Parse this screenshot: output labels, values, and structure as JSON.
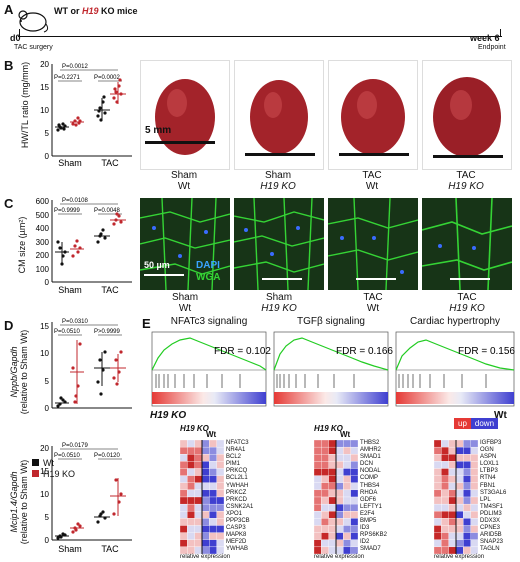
{
  "panel_a": {
    "letter": "A",
    "title_prefix": "WT or ",
    "title_gene": "H19",
    "title_suffix": " KO mice",
    "start_label": "d0",
    "surgery_label": "TAC surgery",
    "end_label": "week 6",
    "endpoint_label": "Endpoint"
  },
  "panel_b": {
    "letter": "B",
    "ylabel": "HW/TL ratio (mg/mm)",
    "yticks": [
      "0",
      "5",
      "10",
      "15",
      "20"
    ],
    "groups": [
      "Sham",
      "TAC"
    ],
    "p_top": "P=0.0012",
    "p_left": "P=0.2271",
    "p_right": "P=0.0002",
    "scale": "5 mm",
    "captions": [
      {
        "line1": "Sham",
        "line2": "Wt"
      },
      {
        "line1": "Sham",
        "line2": "H19 KO"
      },
      {
        "line1": "TAC",
        "line2": "Wt"
      },
      {
        "line1": "TAC",
        "line2": "H19 KO"
      }
    ]
  },
  "panel_c": {
    "letter": "C",
    "ylabel": "CM size (µm²)",
    "yticks": [
      "0",
      "100",
      "200",
      "300",
      "400",
      "500",
      "600"
    ],
    "groups": [
      "Sham",
      "TAC"
    ],
    "p_top": "P=0.0108",
    "p_left": "P=0.9999",
    "p_right": "P=0.0048",
    "scale": "50 µm",
    "dapi": "DAPI",
    "wga": "WGA"
  },
  "panel_d": {
    "letter": "D",
    "ylabel1": "Nppb/Gapdh",
    "ylabel1b": "(relative to Sham Wt)",
    "yticks1": [
      "0",
      "5",
      "10",
      "15"
    ],
    "p1_top": "P=0.0310",
    "p1_left": "P=0.0510",
    "p1_right": "P>0.9999",
    "ylabel2": "Mcip1.4/Gapdh",
    "ylabel2b": "(relative to Sham Wt)",
    "yticks2": [
      "0",
      "5",
      "10",
      "15",
      "20"
    ],
    "p2_top": "P=0.0179",
    "p2_left": "P=0.0510",
    "p2_right": "P=0.0120",
    "groups": [
      "Sham",
      "TAC"
    ],
    "legend_wt": "Wt",
    "legend_ko": "H19 KO"
  },
  "panel_e": {
    "letter": "E",
    "gsea": [
      {
        "title": "NFATc3 signaling",
        "fdr": "FDR = 0.102"
      },
      {
        "title": "TGFβ signaling",
        "fdr": "FDR = 0.166"
      },
      {
        "title": "Cardiac hypertrophy",
        "fdr": "FDR = 0.156"
      }
    ],
    "left_label": "H19 KO",
    "right_label": "Wt",
    "legend_up": "up",
    "legend_down": "down",
    "relative": "relative expression",
    "genes1": [
      "NFATC3",
      "NR4A1",
      "BCL2",
      "PIM1",
      "PRKCQ",
      "BCL2L1",
      "YWHAH",
      "PRKCZ",
      "PRKCD",
      "CSNK2A1",
      "XPO1",
      "PPP3CB",
      "CASP3",
      "MAPK8",
      "MEF2D",
      "YWHAB"
    ],
    "genes2": [
      "THBS2",
      "AMHR2",
      "SMAD1",
      "DCN",
      "NODAL",
      "COMP",
      "THBS4",
      "RHOA",
      "GDF6",
      "LEFTY1",
      "E2F4",
      "BMP5",
      "ID3",
      "RPS6KB2",
      "ID2",
      "SMAD7"
    ],
    "genes3": [
      "IGFBP3",
      "OGN",
      "ASPN",
      "LOXL1",
      "LTBP3",
      "RTN4",
      "FBN1",
      "ST3GAL6",
      "LPL",
      "TM4SF1",
      "PDLIM3",
      "DDX3X",
      "CPNE3",
      "ARID5B",
      "SNAP23",
      "TAGLN"
    ]
  },
  "colors": {
    "ko": "#c0272d",
    "wt": "#111111",
    "green": "#22cc22",
    "red": "#e53935",
    "blue": "#3f3fd0"
  }
}
